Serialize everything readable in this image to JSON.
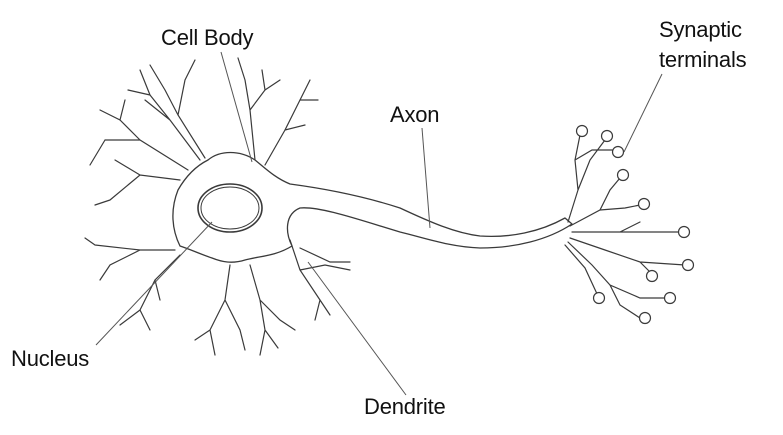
{
  "labels": {
    "cell_body": "Cell Body",
    "synaptic_line1": "Synaptic",
    "synaptic_line2": "terminals",
    "axon": "Axon",
    "nucleus": "Nucleus",
    "dendrite": "Dendrite"
  },
  "colors": {
    "stroke": "#3a3a3a",
    "text": "#111111",
    "background": "#ffffff"
  }
}
